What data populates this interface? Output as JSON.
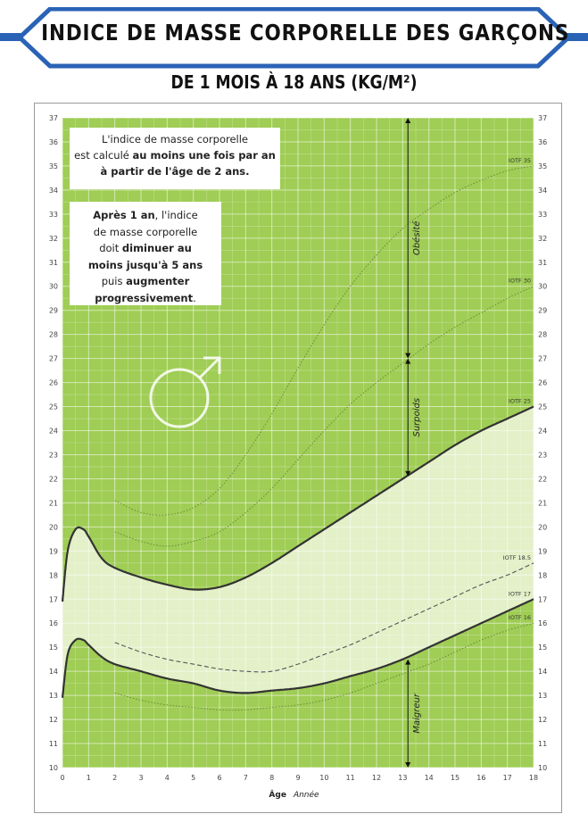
{
  "header": {
    "title": "INDICE DE MASSE CORPORELLE DES GARÇONS",
    "subtitle": "DE 1 MOIS À 18 ANS (KG/M²)"
  },
  "notes": {
    "note1": {
      "line1": "L'indice de masse corporelle",
      "line2a": "est calculé ",
      "line2b": "au moins une fois par an",
      "line3": "à partir de l'âge de 2 ans."
    },
    "note2": {
      "l1a": "Après 1 an",
      "l1b": ", l'indice",
      "l2": "de masse corporelle",
      "l3a": "doit ",
      "l3b": "diminuer au",
      "l4": "moins jusqu'à 5 ans",
      "l5a": "puis ",
      "l5b": "augmenter",
      "l6": "progressivement",
      "l6b": "."
    }
  },
  "xaxis": {
    "label": "Âge",
    "unit": "Année"
  },
  "colors": {
    "green": "#9fcd55",
    "grid": "#e6f1d0",
    "light": "#e3f0c8",
    "curve": "#333333",
    "frame": "#9a9a9a"
  },
  "chart_data": {
    "type": "line",
    "title": "INDICE DE MASSE CORPORELLE DES GARÇONS",
    "subtitle": "DE 1 MOIS À 18 ANS (KG/M²)",
    "xlabel": "Âge",
    "xunit": "Année",
    "xlim": [
      0,
      18
    ],
    "ylim": [
      10,
      37
    ],
    "x_ticks": [
      0,
      1,
      2,
      3,
      4,
      5,
      6,
      7,
      8,
      9,
      10,
      11,
      12,
      13,
      14,
      15,
      16,
      17,
      18
    ],
    "y_ticks": [
      10,
      11,
      12,
      13,
      14,
      15,
      16,
      17,
      18,
      19,
      20,
      21,
      22,
      23,
      24,
      25,
      26,
      27,
      28,
      29,
      30,
      31,
      32,
      33,
      34,
      35,
      36,
      37
    ],
    "grid": true,
    "series": [
      {
        "name": "IOTF 35",
        "style": "dotted",
        "x": [
          2,
          3,
          4,
          5,
          6,
          7,
          8,
          9,
          10,
          11,
          12,
          13,
          14,
          15,
          16,
          17,
          18
        ],
        "values": [
          21.1,
          20.6,
          20.5,
          20.8,
          21.6,
          23.0,
          24.7,
          26.6,
          28.4,
          30.0,
          31.3,
          32.4,
          33.2,
          33.9,
          34.4,
          34.8,
          35.0
        ]
      },
      {
        "name": "IOTF 30",
        "style": "dotted",
        "x": [
          2,
          3,
          4,
          5,
          6,
          7,
          8,
          9,
          10,
          11,
          12,
          13,
          14,
          15,
          16,
          17,
          18
        ],
        "values": [
          19.8,
          19.4,
          19.2,
          19.4,
          19.8,
          20.6,
          21.6,
          22.8,
          24.0,
          25.1,
          26.0,
          26.8,
          27.6,
          28.3,
          28.9,
          29.5,
          30.0
        ]
      },
      {
        "name": "IOTF 25",
        "style": "solid",
        "x": [
          0,
          0.2,
          0.5,
          0.8,
          1.0,
          1.5,
          2,
          3,
          4,
          5,
          6,
          7,
          8,
          9,
          10,
          11,
          12,
          13,
          14,
          15,
          16,
          17,
          18
        ],
        "values": [
          16.9,
          19.0,
          19.9,
          19.9,
          19.6,
          18.7,
          18.3,
          17.9,
          17.6,
          17.4,
          17.5,
          17.9,
          18.5,
          19.2,
          19.9,
          20.6,
          21.3,
          22.0,
          22.7,
          23.4,
          24.0,
          24.5,
          25.0
        ]
      },
      {
        "name": "IOTF 18.5",
        "style": "dashed",
        "x": [
          2,
          3,
          4,
          5,
          6,
          7,
          8,
          9,
          10,
          11,
          12,
          13,
          14,
          15,
          16,
          17,
          18
        ],
        "values": [
          15.2,
          14.8,
          14.5,
          14.3,
          14.1,
          14.0,
          14.0,
          14.3,
          14.7,
          15.1,
          15.6,
          16.1,
          16.6,
          17.1,
          17.6,
          18.0,
          18.5
        ]
      },
      {
        "name": "IOTF 17",
        "style": "solid",
        "x": [
          0,
          0.2,
          0.5,
          0.8,
          1.0,
          1.5,
          2,
          3,
          4,
          5,
          6,
          7,
          8,
          9,
          10,
          11,
          12,
          13,
          14,
          15,
          16,
          17,
          18
        ],
        "values": [
          12.9,
          14.7,
          15.3,
          15.3,
          15.1,
          14.6,
          14.3,
          14.0,
          13.7,
          13.5,
          13.2,
          13.1,
          13.2,
          13.3,
          13.5,
          13.8,
          14.1,
          14.5,
          15.0,
          15.5,
          16.0,
          16.5,
          17.0
        ]
      },
      {
        "name": "IOTF 16",
        "style": "dotted",
        "x": [
          2,
          3,
          4,
          5,
          6,
          7,
          8,
          9,
          10,
          11,
          12,
          13,
          14,
          15,
          16,
          17,
          18
        ],
        "values": [
          13.1,
          12.8,
          12.6,
          12.5,
          12.4,
          12.4,
          12.5,
          12.6,
          12.8,
          13.1,
          13.5,
          13.9,
          14.3,
          14.8,
          15.3,
          15.7,
          16.0
        ]
      }
    ],
    "zones": [
      {
        "name": "Obésité",
        "from": 27,
        "to": 37
      },
      {
        "name": "Surpoids",
        "from": 22.1,
        "to": 27
      },
      {
        "name": "Maigreur",
        "from": 10,
        "to": 14.5
      }
    ],
    "zone_marker_x": 13.2
  }
}
